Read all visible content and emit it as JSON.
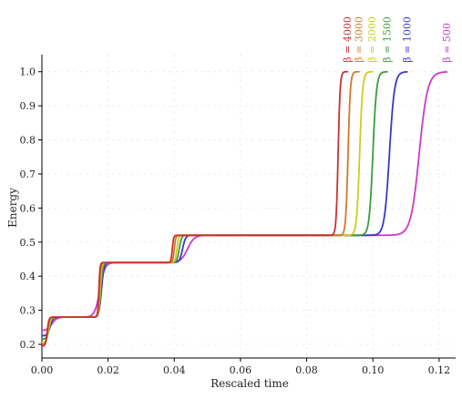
{
  "chart_data": {
    "type": "line",
    "title": "",
    "xlabel": "Rescaled time",
    "ylabel": "Energy",
    "xlim": [
      0.0,
      0.125
    ],
    "ylim": [
      0.16,
      1.05
    ],
    "x_ticks": [
      0.0,
      0.02,
      0.04,
      0.06,
      0.08,
      0.1,
      0.12
    ],
    "x_tick_labels": [
      "0.00",
      "0.02",
      "0.04",
      "0.06",
      "0.08",
      "0.10",
      "0.12"
    ],
    "y_ticks": [
      0.2,
      0.3,
      0.4,
      0.5,
      0.6,
      0.7,
      0.8,
      0.9,
      1.0
    ],
    "y_tick_labels": [
      "0.2",
      "0.3",
      "0.4",
      "0.5",
      "0.6",
      "0.7",
      "0.8",
      "0.9",
      "1.0"
    ],
    "grid": "dotted",
    "legend": "labels above curve ends",
    "series": [
      {
        "label": "β = 500",
        "color": "#c83cc8",
        "start": 0.24,
        "levels": [
          0.28,
          0.44,
          0.52,
          1.0
        ],
        "centers": [
          0.003,
          0.0175,
          0.044,
          0.114
        ],
        "widths": [
          0.003,
          0.003,
          0.004,
          0.005
        ]
      },
      {
        "label": "β = 1000",
        "color": "#3a3ac6",
        "start": 0.225,
        "levels": [
          0.28,
          0.44,
          0.52,
          1.0
        ],
        "centers": [
          0.0025,
          0.018,
          0.0425,
          0.105
        ],
        "widths": [
          0.0018,
          0.0015,
          0.0018,
          0.003
        ]
      },
      {
        "label": "β = 1500",
        "color": "#3a9e3a",
        "start": 0.215,
        "levels": [
          0.28,
          0.44,
          0.52,
          1.0
        ],
        "centers": [
          0.0022,
          0.0178,
          0.0415,
          0.1
        ],
        "widths": [
          0.0015,
          0.0012,
          0.0014,
          0.0022
        ]
      },
      {
        "label": "β = 2000",
        "color": "#cccc22",
        "start": 0.205,
        "levels": [
          0.28,
          0.44,
          0.52,
          1.0
        ],
        "centers": [
          0.002,
          0.0176,
          0.0408,
          0.096
        ],
        "widths": [
          0.0013,
          0.001,
          0.0011,
          0.0018
        ]
      },
      {
        "label": "β = 3000",
        "color": "#d27a28",
        "start": 0.2,
        "levels": [
          0.28,
          0.44,
          0.52,
          1.0
        ],
        "centers": [
          0.0018,
          0.0174,
          0.04,
          0.0925
        ],
        "widths": [
          0.0011,
          0.0008,
          0.0009,
          0.0014
        ]
      },
      {
        "label": "β = 4000",
        "color": "#c83232",
        "start": 0.195,
        "levels": [
          0.28,
          0.44,
          0.52,
          1.0
        ],
        "centers": [
          0.0016,
          0.0172,
          0.0394,
          0.0895
        ],
        "widths": [
          0.001,
          0.0007,
          0.0008,
          0.0012
        ]
      }
    ],
    "x_end": [
      0.1225,
      0.1105,
      0.1045,
      0.1,
      0.096,
      0.0925
    ]
  }
}
